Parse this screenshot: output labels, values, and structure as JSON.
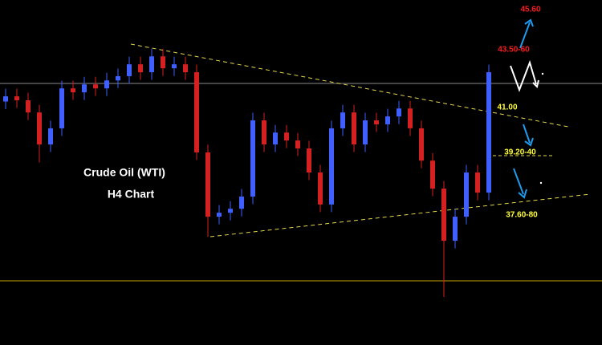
{
  "chart_data": {
    "type": "candlestick",
    "title": "Crude Oil (WTI)",
    "subtitle": "H4 Chart",
    "ylim": [
      33.21,
      44.53
    ],
    "up_color": "#3f5fff",
    "down_color": "#d42020",
    "open": [
      41.2,
      41.37,
      41.24,
      40.84,
      39.79,
      40.32,
      41.63,
      41.5,
      41.76,
      41.63,
      41.89,
      42.03,
      42.42,
      42.16,
      42.68,
      42.29,
      42.42,
      42.16,
      39.53,
      37.42,
      37.55,
      37.68,
      38.08,
      40.58,
      39.79,
      40.18,
      39.92,
      39.66,
      38.87,
      37.82,
      40.32,
      40.84,
      39.79,
      40.58,
      40.45,
      40.71,
      40.97,
      40.32,
      39.26,
      38.34,
      36.63,
      37.42,
      38.87,
      38.21
    ],
    "high": [
      41.62,
      41.62,
      41.49,
      41.09,
      40.57,
      41.88,
      41.88,
      42.01,
      42.01,
      42.14,
      42.28,
      42.67,
      42.67,
      42.93,
      42.93,
      42.67,
      42.67,
      42.41,
      39.78,
      37.8,
      37.93,
      38.33,
      40.83,
      40.83,
      40.43,
      40.43,
      40.17,
      39.91,
      39.12,
      40.57,
      41.09,
      41.09,
      40.83,
      40.83,
      40.96,
      41.22,
      41.22,
      40.57,
      39.51,
      38.59,
      37.67,
      39.12,
      39.12,
      42.41
    ],
    "low": [
      40.95,
      40.99,
      40.59,
      39.2,
      39.54,
      40.07,
      41.25,
      41.25,
      41.38,
      41.38,
      41.64,
      41.78,
      41.91,
      41.91,
      42.04,
      42.04,
      41.91,
      39.28,
      36.76,
      37.17,
      37.3,
      37.43,
      37.83,
      39.54,
      39.54,
      39.67,
      39.41,
      38.62,
      37.57,
      37.57,
      40.07,
      39.54,
      39.54,
      40.2,
      40.2,
      40.46,
      40.07,
      39.01,
      38.09,
      34.79,
      36.38,
      37.17,
      37.96,
      37.96
    ],
    "close": [
      41.37,
      41.24,
      40.84,
      39.79,
      40.32,
      41.63,
      41.5,
      41.76,
      41.63,
      41.89,
      42.03,
      42.42,
      42.16,
      42.68,
      42.29,
      42.42,
      42.16,
      39.53,
      37.42,
      37.55,
      37.68,
      38.08,
      40.58,
      39.79,
      40.18,
      39.92,
      39.66,
      38.87,
      37.82,
      40.32,
      40.84,
      39.79,
      40.58,
      40.45,
      40.71,
      40.97,
      40.32,
      39.26,
      38.34,
      36.63,
      37.42,
      38.87,
      38.21,
      42.16
    ],
    "annotations": [
      {
        "text": "45.60",
        "color": "#ff1a1a"
      },
      {
        "text": "43.50-60",
        "color": "#ff1a1a"
      },
      {
        "text": "41.00",
        "color": "#ffff33"
      },
      {
        "text": "39.20-40",
        "color": "#ffff33"
      },
      {
        "text": "37.60-80",
        "color": "#ffff33"
      }
    ]
  }
}
